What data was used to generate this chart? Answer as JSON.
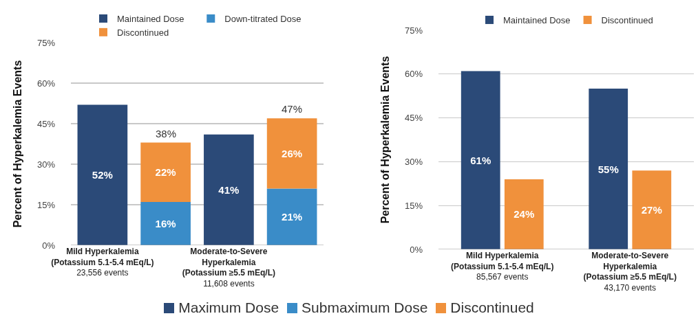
{
  "chart_data": [
    {
      "type": "bar",
      "ylabel": "Percent of Hyperkalemia Events",
      "stacked": true,
      "legend": "top",
      "grid": "y",
      "categories": [
        "Mild Hyperkalemia\n(Potassium 5.1-5.4 mEq/L)\n23,556 events",
        null,
        "Moderate-to-Severe\nHyperkalemia\n(Potassium ≥5.5 mEq/L)\n11,608 events",
        null
      ],
      "series": [
        {
          "name": "Maintained Dose",
          "color": "#2b4a78",
          "values": [
            52,
            null,
            41,
            null
          ],
          "value_labels": [
            "52%",
            null,
            "41%",
            null
          ]
        },
        {
          "name": "Down-titrated Dose",
          "color": "#3a8cc8",
          "values": [
            null,
            16,
            null,
            21
          ],
          "value_labels": [
            null,
            "16%",
            null,
            "21%"
          ]
        },
        {
          "name": "Discontinued",
          "color": "#f0913c",
          "values": [
            null,
            22,
            null,
            26
          ],
          "value_labels": [
            null,
            "22%",
            null,
            "26%"
          ]
        }
      ],
      "totals": [
        null,
        "38%",
        null,
        "47%"
      ],
      "ylim": [
        0,
        75
      ],
      "yticks": [
        {
          "value": 0,
          "label": "0%"
        },
        {
          "value": 15,
          "label": "15%"
        },
        {
          "value": 30,
          "label": "30%"
        },
        {
          "value": 45,
          "label": "45%"
        },
        {
          "value": 60,
          "label": "60%"
        },
        {
          "value": 75,
          "label": "75%"
        }
      ],
      "annotations": [
        "Maximum Dose",
        "Submaximum Dose",
        "Discontinued"
      ]
    },
    {
      "type": "bar",
      "ylabel": "Percent of Hyperkalemia Events",
      "legend": "top",
      "grid": "y",
      "categories": [
        "Mild Hyperkalemia\n(Potassium 5.1-5.4 mEq/L)\n85,567 events",
        "Moderate-to-Severe\nHyperkalemia\n(Potassium ≥5.5 mEq/L)\n43,170 events"
      ],
      "series": [
        {
          "name": "Maintained Dose",
          "color": "#2b4a78",
          "values": [
            61,
            55
          ],
          "value_labels": [
            "61%",
            "55%"
          ]
        },
        {
          "name": "Discontinued",
          "color": "#f0913c",
          "values": [
            24,
            27
          ],
          "value_labels": [
            "24%",
            "27%"
          ]
        }
      ],
      "ylim": [
        0,
        75
      ],
      "yticks": [
        {
          "value": 0,
          "label": "0%"
        },
        {
          "value": 15,
          "label": "15%"
        },
        {
          "value": 30,
          "label": "30%"
        },
        {
          "value": 45,
          "label": "45%"
        },
        {
          "value": 60,
          "label": "60%"
        },
        {
          "value": 75,
          "label": "75%"
        }
      ]
    }
  ]
}
